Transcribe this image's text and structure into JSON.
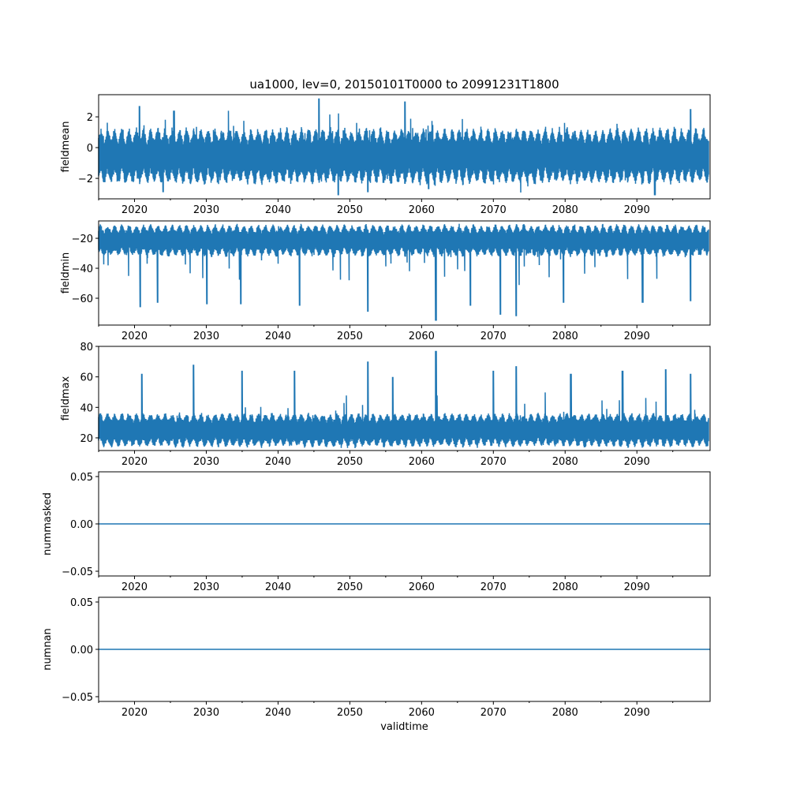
{
  "chart_data": [
    {
      "type": "line",
      "title": "ua1000, lev=0, 20150101T0000 to 20991231T1800",
      "ylabel": "fieldmean",
      "xlabel": "",
      "xlim": [
        2015.0,
        2100.2
      ],
      "ylim": [
        -3.33,
        3.44
      ],
      "yticks": [
        -2,
        0,
        2
      ],
      "ytick_labels": [
        "−2",
        "0",
        "2"
      ],
      "typical_band": [
        -2.0,
        0.9
      ],
      "seasonal_amplitude": 0.5,
      "extremes": [
        [
          2020.7,
          2.7
        ],
        [
          2025.5,
          2.4
        ],
        [
          2045.7,
          3.2
        ],
        [
          2057.7,
          3.0
        ],
        [
          2097.5,
          2.5
        ],
        [
          2048.4,
          -3.1
        ],
        [
          2052.5,
          -2.9
        ],
        [
          2061.0,
          -2.7
        ],
        [
          2092.5,
          -3.1
        ],
        [
          2024.0,
          -2.9
        ]
      ]
    },
    {
      "type": "line",
      "ylabel": "fieldmin",
      "xlabel": "",
      "xlim": [
        2015.0,
        2100.2
      ],
      "ylim": [
        -77.9,
        -8.4
      ],
      "yticks": [
        -60,
        -40,
        -20
      ],
      "ytick_labels": [
        "−60",
        "−40",
        "−20"
      ],
      "typical_band": [
        -30,
        -13
      ],
      "seasonal_amplitude": 3,
      "extremes": [
        [
          2020.8,
          -66
        ],
        [
          2023.2,
          -63
        ],
        [
          2030.1,
          -64
        ],
        [
          2034.8,
          -64
        ],
        [
          2043.0,
          -65
        ],
        [
          2052.5,
          -69
        ],
        [
          2062.0,
          -75
        ],
        [
          2066.8,
          -65
        ],
        [
          2071.0,
          -71
        ],
        [
          2073.2,
          -72
        ],
        [
          2079.8,
          -63
        ],
        [
          2090.8,
          -63
        ],
        [
          2097.5,
          -62
        ]
      ]
    },
    {
      "type": "line",
      "ylabel": "fieldmax",
      "xlabel": "",
      "xlim": [
        2015.0,
        2100.2
      ],
      "ylim": [
        11.7,
        80
      ],
      "yticks": [
        20,
        40,
        60,
        80
      ],
      "ytick_labels": [
        "20",
        "40",
        "60",
        "80"
      ],
      "typical_band": [
        16,
        34
      ],
      "seasonal_amplitude": 3,
      "extremes": [
        [
          2021.0,
          62
        ],
        [
          2028.2,
          68
        ],
        [
          2035.0,
          64
        ],
        [
          2042.3,
          64
        ],
        [
          2052.5,
          70
        ],
        [
          2056.0,
          60
        ],
        [
          2062.0,
          77
        ],
        [
          2070.0,
          64
        ],
        [
          2073.2,
          67
        ],
        [
          2080.8,
          62
        ],
        [
          2088.0,
          64
        ],
        [
          2094.0,
          65
        ],
        [
          2097.5,
          62
        ]
      ]
    },
    {
      "type": "line",
      "ylabel": "nummasked",
      "xlabel": "",
      "xlim": [
        2015.0,
        2100.2
      ],
      "ylim": [
        -0.055,
        0.055
      ],
      "yticks": [
        -0.05,
        0,
        0.05
      ],
      "ytick_labels": [
        "−0.05",
        "0.00",
        "0.05"
      ],
      "constant_value": 0
    },
    {
      "type": "line",
      "ylabel": "numnan",
      "xlabel": "validtime",
      "xlim": [
        2015.0,
        2100.2
      ],
      "ylim": [
        -0.055,
        0.055
      ],
      "yticks": [
        -0.05,
        0,
        0.05
      ],
      "ytick_labels": [
        "−0.05",
        "0.00",
        "0.05"
      ],
      "constant_value": 0
    }
  ],
  "xticks": [
    2020,
    2030,
    2040,
    2050,
    2060,
    2070,
    2080,
    2090
  ],
  "xtick_labels": [
    "2020",
    "2030",
    "2040",
    "2050",
    "2060",
    "2070",
    "2080",
    "2090"
  ],
  "series_color": "#1f77b4"
}
